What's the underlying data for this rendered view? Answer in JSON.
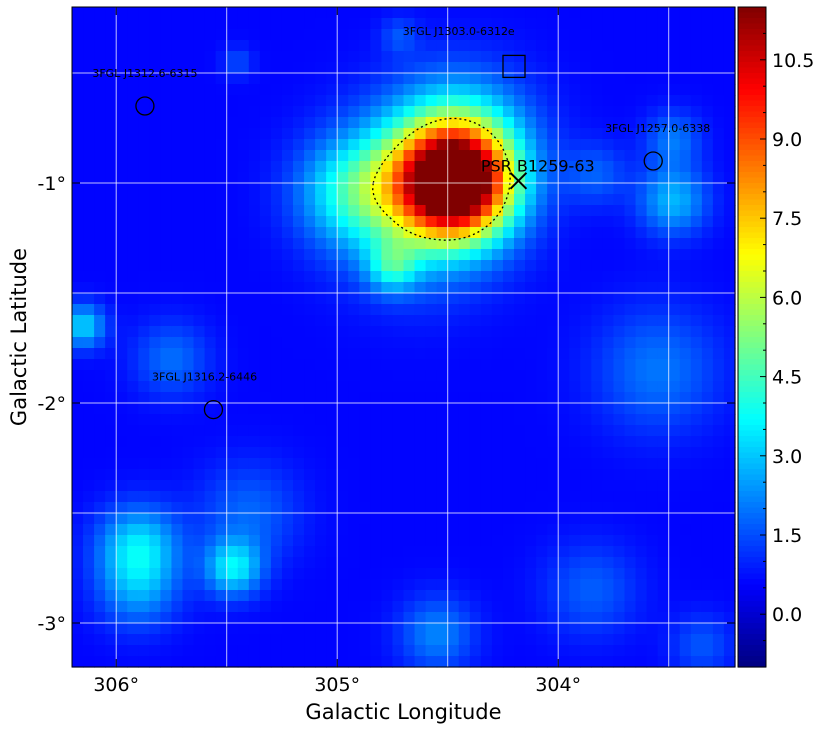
{
  "chart_data": {
    "type": "heatmap",
    "title": "",
    "xlabel": "Galactic Longitude",
    "ylabel": "Galactic Latitude",
    "x_ticks": [
      {
        "value": 306,
        "label": "306°"
      },
      {
        "value": 305,
        "label": "305°"
      },
      {
        "value": 304,
        "label": "304°"
      }
    ],
    "y_ticks": [
      {
        "value": -1,
        "label": "-1°"
      },
      {
        "value": -2,
        "label": "-2°"
      },
      {
        "value": -3,
        "label": "-3°"
      }
    ],
    "xlim": [
      306.2,
      303.2
    ],
    "ylim": [
      -3.2,
      -0.2
    ],
    "grid": true,
    "colormap": "jet",
    "colorbar": {
      "range": [
        -1.0,
        11.5
      ],
      "ticks": [
        "0.0",
        "1.5",
        "3.0",
        "4.5",
        "6.0",
        "7.5",
        "9.0",
        "10.5"
      ],
      "tick_values": [
        0.0,
        1.5,
        3.0,
        4.5,
        6.0,
        7.5,
        9.0,
        10.5
      ]
    },
    "background_level": 0.6,
    "hotspots": [
      {
        "l": 304.46,
        "b": -1.0,
        "peak": 10.5,
        "sigma": 0.17
      },
      {
        "l": 304.45,
        "b": -0.82,
        "peak": 3.0,
        "sigma": 0.22
      },
      {
        "l": 304.62,
        "b": -1.08,
        "peak": 3.2,
        "sigma": 0.25
      },
      {
        "l": 304.85,
        "b": -1.02,
        "peak": 1.8,
        "sigma": 0.18
      },
      {
        "l": 305.0,
        "b": -1.05,
        "peak": 1.2,
        "sigma": 0.16
      },
      {
        "l": 304.75,
        "b": -1.38,
        "peak": 2.4,
        "sigma": 0.08
      },
      {
        "l": 303.48,
        "b": -1.08,
        "peak": 2.2,
        "sigma": 0.11
      },
      {
        "l": 303.48,
        "b": -0.8,
        "peak": 1.4,
        "sigma": 0.09
      },
      {
        "l": 303.83,
        "b": -0.96,
        "peak": 1.1,
        "sigma": 0.1
      },
      {
        "l": 303.55,
        "b": -1.85,
        "peak": 1.4,
        "sigma": 0.2
      },
      {
        "l": 305.75,
        "b": -1.8,
        "peak": 1.3,
        "sigma": 0.12
      },
      {
        "l": 306.15,
        "b": -1.65,
        "peak": 2.6,
        "sigma": 0.07
      },
      {
        "l": 305.9,
        "b": -2.65,
        "peak": 2.6,
        "sigma": 0.13
      },
      {
        "l": 305.9,
        "b": -2.85,
        "peak": 1.6,
        "sigma": 0.13
      },
      {
        "l": 305.47,
        "b": -2.75,
        "peak": 2.8,
        "sigma": 0.09
      },
      {
        "l": 305.4,
        "b": -2.5,
        "peak": 1.2,
        "sigma": 0.16
      },
      {
        "l": 304.55,
        "b": -3.05,
        "peak": 1.6,
        "sigma": 0.12
      },
      {
        "l": 303.85,
        "b": -2.85,
        "peak": 1.1,
        "sigma": 0.15
      },
      {
        "l": 303.35,
        "b": -3.1,
        "peak": 1.0,
        "sigma": 0.1
      },
      {
        "l": 305.45,
        "b": -0.45,
        "peak": 0.9,
        "sigma": 0.05
      },
      {
        "l": 304.72,
        "b": -0.33,
        "peak": 0.9,
        "sigma": 0.06
      }
    ],
    "contour": {
      "label": "",
      "style": "dotted"
    },
    "annotations": [
      {
        "text": "3FGL J1303.0-6312e",
        "l": 304.2,
        "b": -0.47,
        "marker": "square",
        "text_l": 304.45,
        "text_b": -0.31
      },
      {
        "text": "3FGL J1312.6-6315",
        "l": 305.87,
        "b": -0.65,
        "marker": "circle",
        "text_l": 305.87,
        "text_b": -0.5
      },
      {
        "text": "3FGL J1257.0-6338",
        "l": 303.57,
        "b": -0.9,
        "marker": "circle",
        "text_l": 303.55,
        "text_b": -0.75
      },
      {
        "text": "3FGL J1316.2-6446",
        "l": 305.56,
        "b": -2.03,
        "marker": "circle",
        "text_l": 305.6,
        "text_b": -1.88
      }
    ],
    "pulsar": {
      "text": "PSR B1259-63",
      "l": 304.18,
      "b": -0.99,
      "marker": "x",
      "text_l": 304.35,
      "text_b": -0.93
    }
  }
}
